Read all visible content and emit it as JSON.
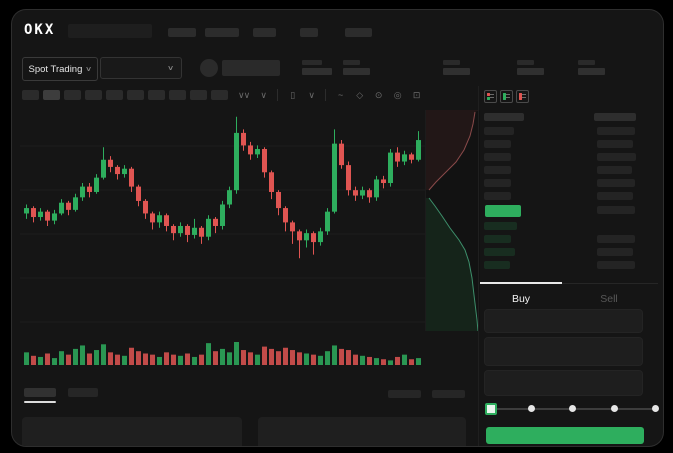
{
  "app": {
    "logo_text": "OKX"
  },
  "colors": {
    "accent_green": "#2eae5e",
    "candle_up": "#2eae5e",
    "candle_down": "#e05552",
    "buy_tab_underline": "#e8e8e8",
    "depth_ask_line": "#8a4a4a",
    "depth_bid_line": "#3d8f6b"
  },
  "market_selector": {
    "label": "Spot Trading",
    "chevron": "∨"
  },
  "pair_dropdown": {
    "chevron": "∨"
  },
  "toolbar": {
    "icons": [
      {
        "name": "indicators-icon",
        "glyph": "∨∨"
      },
      {
        "name": "indicators-dropdown-icon",
        "glyph": "∨"
      },
      {
        "name": "candle-style-icon",
        "glyph": "▯"
      },
      {
        "name": "candle-style-dropdown-icon",
        "glyph": "∨"
      },
      {
        "name": "line-tool-icon",
        "glyph": "~"
      },
      {
        "name": "drawing-tools-icon",
        "glyph": "◇"
      },
      {
        "name": "screenshot-icon",
        "glyph": "⊙"
      },
      {
        "name": "chart-settings-icon",
        "glyph": "◎"
      },
      {
        "name": "fullscreen-icon",
        "glyph": "⊡"
      }
    ]
  },
  "order_book": {
    "view_icons": [
      "book-both-view",
      "book-bids-view",
      "book-asks-view"
    ],
    "ask_rows": 6,
    "bid_rows": 4
  },
  "order_panel": {
    "buy_tab": "Buy",
    "sell_tab": "Sell",
    "slider_stops": 5,
    "slider_active_index": 0,
    "submit_label": ""
  },
  "chart_data": {
    "type": "candlestick",
    "title": "",
    "xlabel": "",
    "ylabel": "",
    "grid": "horizontal-faint",
    "price_scale": {
      "min": 0,
      "max": 100
    },
    "legend": [],
    "columns": [
      "open",
      "high",
      "low",
      "close",
      "volume"
    ],
    "candles": [
      [
        45,
        50,
        42,
        48,
        55
      ],
      [
        48,
        49,
        40,
        43,
        40
      ],
      [
        43,
        48,
        41,
        46,
        35
      ],
      [
        46,
        47,
        38,
        41,
        50
      ],
      [
        41,
        47,
        39,
        45,
        30
      ],
      [
        45,
        53,
        44,
        51,
        60
      ],
      [
        51,
        52,
        44,
        47,
        45
      ],
      [
        47,
        56,
        46,
        54,
        70
      ],
      [
        54,
        62,
        52,
        60,
        85
      ],
      [
        60,
        62,
        54,
        57,
        50
      ],
      [
        57,
        67,
        56,
        65,
        65
      ],
      [
        65,
        82,
        64,
        75,
        90
      ],
      [
        75,
        77,
        68,
        71,
        55
      ],
      [
        71,
        72,
        64,
        67,
        45
      ],
      [
        67,
        72,
        65,
        70,
        40
      ],
      [
        70,
        71,
        57,
        60,
        75
      ],
      [
        60,
        61,
        49,
        52,
        60
      ],
      [
        52,
        53,
        42,
        45,
        50
      ],
      [
        45,
        46,
        36,
        40,
        45
      ],
      [
        40,
        46,
        37,
        44,
        35
      ],
      [
        44,
        45,
        35,
        38,
        55
      ],
      [
        38,
        39,
        30,
        34,
        45
      ],
      [
        34,
        40,
        32,
        38,
        40
      ],
      [
        38,
        39,
        29,
        33,
        50
      ],
      [
        33,
        42,
        31,
        37,
        35
      ],
      [
        37,
        38,
        28,
        32,
        45
      ],
      [
        32,
        44,
        30,
        42,
        95
      ],
      [
        42,
        43,
        34,
        38,
        60
      ],
      [
        38,
        52,
        36,
        50,
        70
      ],
      [
        50,
        60,
        48,
        58,
        55
      ],
      [
        58,
        99,
        56,
        90,
        100
      ],
      [
        90,
        92,
        80,
        83,
        65
      ],
      [
        83,
        85,
        75,
        78,
        55
      ],
      [
        78,
        83,
        76,
        81,
        45
      ],
      [
        81,
        82,
        65,
        68,
        80
      ],
      [
        68,
        69,
        53,
        57,
        70
      ],
      [
        57,
        58,
        44,
        48,
        60
      ],
      [
        48,
        49,
        35,
        40,
        75
      ],
      [
        40,
        41,
        28,
        35,
        65
      ],
      [
        35,
        36,
        20,
        30,
        55
      ],
      [
        30,
        36,
        26,
        34,
        50
      ],
      [
        34,
        35,
        22,
        29,
        45
      ],
      [
        29,
        37,
        27,
        35,
        40
      ],
      [
        35,
        48,
        33,
        46,
        60
      ],
      [
        46,
        92,
        45,
        84,
        85
      ],
      [
        84,
        86,
        70,
        72,
        70
      ],
      [
        72,
        74,
        55,
        58,
        65
      ],
      [
        58,
        60,
        52,
        55,
        45
      ],
      [
        55,
        60,
        53,
        58,
        40
      ],
      [
        58,
        59,
        51,
        54,
        35
      ],
      [
        54,
        66,
        52,
        64,
        30
      ],
      [
        64,
        66,
        59,
        62,
        25
      ],
      [
        62,
        81,
        60,
        79,
        20
      ],
      [
        79,
        82,
        71,
        74,
        35
      ],
      [
        74,
        80,
        72,
        78,
        45
      ],
      [
        78,
        79,
        73,
        75,
        25
      ],
      [
        75,
        91,
        74,
        86,
        30
      ]
    ],
    "depth_profile": {
      "orientation": "vertical",
      "asks_curve": [
        [
          49,
          2
        ],
        [
          47,
          14
        ],
        [
          44,
          26
        ],
        [
          38,
          40
        ],
        [
          30,
          52
        ],
        [
          20,
          62
        ],
        [
          10,
          72
        ],
        [
          3,
          80
        ]
      ],
      "bids_curve": [
        [
          3,
          88
        ],
        [
          9,
          96
        ],
        [
          16,
          106
        ],
        [
          24,
          118
        ],
        [
          33,
          130
        ],
        [
          39,
          140
        ],
        [
          43,
          152
        ],
        [
          46,
          168
        ],
        [
          48,
          185
        ],
        [
          51,
          210
        ],
        [
          52,
          221
        ]
      ]
    }
  }
}
